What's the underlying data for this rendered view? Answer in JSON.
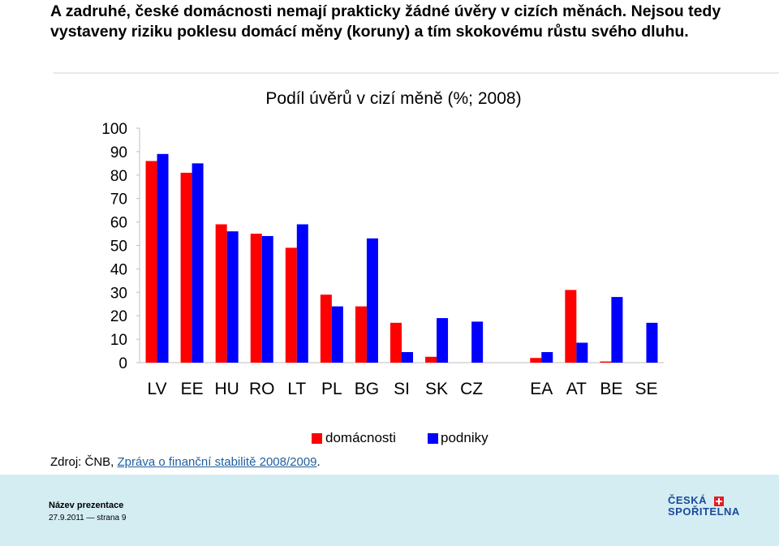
{
  "heading": "A zadruhé, české domácnosti nemají prakticky žádné úvěry v cizích měnách. Nejsou tedy vystaveny riziku poklesu domácí měny (koruny) a tím skokovému růstu svého dluhu.",
  "colors": {
    "domacnosti": "#ff0000",
    "podniky": "#0000ff"
  },
  "chart_data": {
    "type": "bar",
    "title": "Podíl úvěrů v cizí měně (%; 2008)",
    "categories": [
      "LV",
      "EE",
      "HU",
      "RO",
      "LT",
      "PL",
      "BG",
      "SI",
      "SK",
      "CZ",
      "",
      "EA",
      "AT",
      "BE",
      "SE"
    ],
    "series": [
      {
        "name": "domácnosti",
        "values": [
          86,
          81,
          59,
          55,
          49,
          29,
          24,
          17,
          2.5,
          0,
          null,
          2,
          31,
          0.5,
          0
        ]
      },
      {
        "name": "podniky",
        "values": [
          89,
          85,
          56,
          54,
          59,
          24,
          53,
          4.5,
          19,
          17.5,
          null,
          4.5,
          8.5,
          28,
          17
        ]
      }
    ],
    "ylim": [
      0,
      100
    ],
    "yticks": [
      "0",
      "10",
      "20",
      "30",
      "40",
      "50",
      "60",
      "70",
      "80",
      "90",
      "100"
    ],
    "legend_position": "bottom",
    "grid": false
  },
  "source": {
    "prefix": "Zdroj: ČNB, ",
    "link": "Zpráva o finanční stabilitě 2008/2009",
    "suffix": "."
  },
  "footer": {
    "presentation_name": "Název prezentace",
    "date_page": "27.9.2011 — strana 9"
  },
  "logo": {
    "line1": "ČESKÁ",
    "line2": "SPOŘITELNA"
  }
}
